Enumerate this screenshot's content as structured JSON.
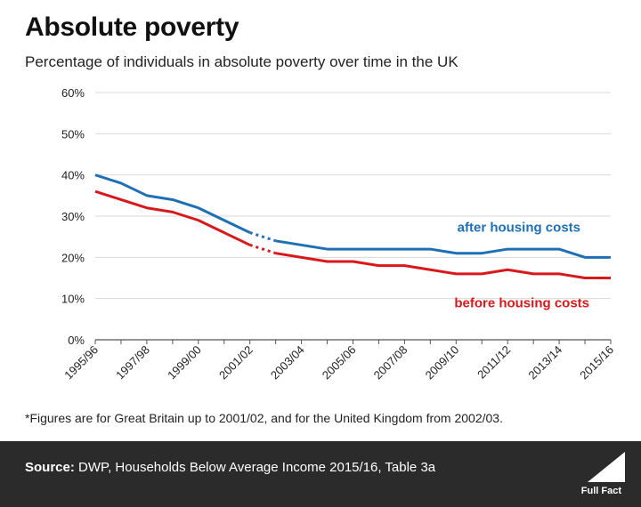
{
  "title": "Absolute poverty",
  "subtitle": "Percentage of individuals in absolute poverty over time in the UK",
  "footnote": "*Figures are for Great Britain up to 2001/02, and for the United Kingdom from 2002/03.",
  "footer": {
    "source_label": "Source:",
    "source_text": "DWP, Households Below Average Income 2015/16, Table 3a",
    "logo_text": "Full Fact"
  },
  "chart_data": {
    "type": "line",
    "x": [
      "1995/96",
      "1996/97",
      "1997/98",
      "1998/99",
      "1999/00",
      "2000/01",
      "2001/02",
      "2002/03",
      "2003/04",
      "2004/05",
      "2005/06",
      "2006/07",
      "2007/08",
      "2008/09",
      "2009/10",
      "2010/11",
      "2011/12",
      "2012/13",
      "2013/14",
      "2014/15",
      "2015/16"
    ],
    "x_tick_labels": [
      "1995/96",
      "1997/98",
      "1999/00",
      "2001/02",
      "2003/04",
      "2005/06",
      "2007/08",
      "2009/10",
      "2011/12",
      "2013/14",
      "2015/16"
    ],
    "ylim": [
      0,
      60
    ],
    "y_ticks": [
      0,
      10,
      20,
      30,
      40,
      50,
      60
    ],
    "y_tick_format": "%",
    "grid": "horizontal",
    "discontinuity_between": [
      "2001/02",
      "2002/03"
    ],
    "series": [
      {
        "name": "after housing costs",
        "color": "#1f6fb5",
        "values": [
          40,
          38,
          35,
          34,
          32,
          29,
          26,
          24,
          23,
          22,
          22,
          22,
          22,
          22,
          21,
          21,
          22,
          22,
          22,
          20,
          20
        ]
      },
      {
        "name": "before housing costs",
        "color": "#d7191c",
        "values": [
          36,
          34,
          32,
          31,
          29,
          26,
          23,
          21,
          20,
          19,
          19,
          18,
          18,
          17,
          16,
          16,
          17,
          16,
          16,
          15,
          15
        ]
      }
    ]
  }
}
